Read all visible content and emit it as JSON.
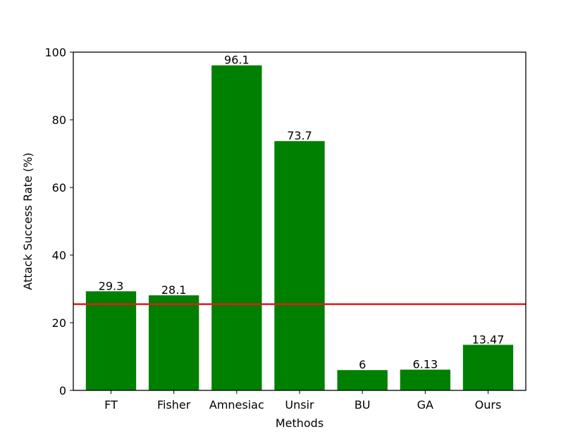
{
  "chart_data": {
    "type": "bar",
    "categories": [
      "FT",
      "Fisher",
      "Amnesiac",
      "Unsir",
      "BU",
      "GA",
      "Ours"
    ],
    "values": [
      29.3,
      28.1,
      96.1,
      73.7,
      6,
      6.13,
      13.47
    ],
    "value_labels": [
      "29.3",
      "28.1",
      "96.1",
      "73.7",
      "6",
      "6.13",
      "13.47"
    ],
    "xlabel": "Methods",
    "ylabel": "Attack Success Rate (%)",
    "ylim": [
      0,
      100
    ],
    "yticks": [
      0,
      20,
      40,
      60,
      80,
      100
    ],
    "reference_line": 25.5,
    "grid": false,
    "colors": {
      "bar": "#008000",
      "reference_line": "#e31a1c",
      "axis": "#000000"
    }
  }
}
